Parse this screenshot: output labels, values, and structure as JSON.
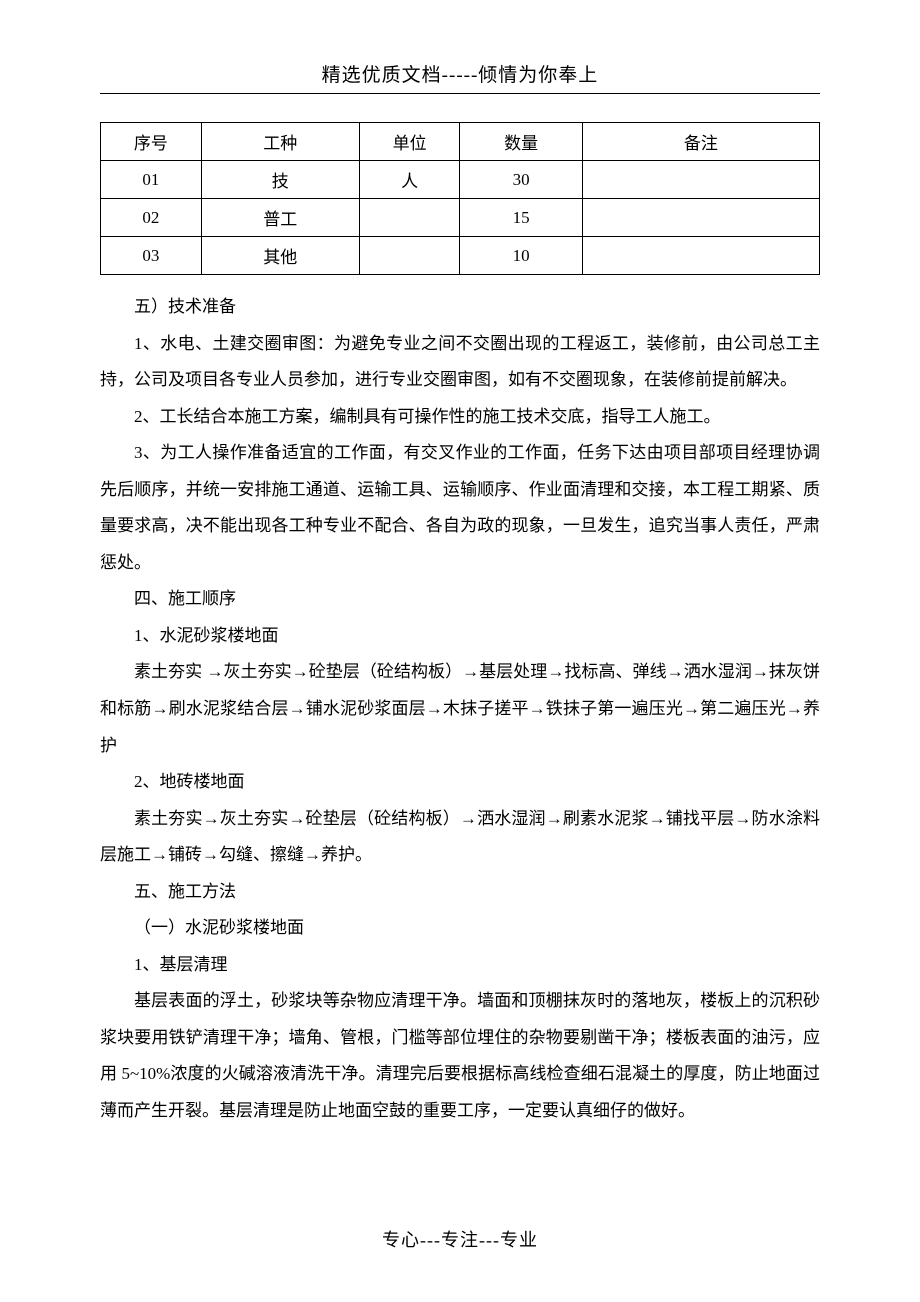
{
  "header": "精选优质文档-----倾情为你奉上",
  "table": {
    "columns": [
      "序号",
      "工种",
      "单位",
      "数量",
      "备注"
    ],
    "rows": [
      [
        "01",
        "技",
        "人",
        "30",
        ""
      ],
      [
        "02",
        "普工",
        "",
        "15",
        ""
      ],
      [
        "03",
        "其他",
        "",
        "10",
        ""
      ]
    ]
  },
  "paragraphs": [
    "五）技术准备",
    "1、水电、土建交圈审图：为避免专业之间不交圈出现的工程返工，装修前，由公司总工主持，公司及项目各专业人员参加，进行专业交圈审图，如有不交圈现象，在装修前提前解决。",
    "2、工长结合本施工方案，编制具有可操作性的施工技术交底，指导工人施工。",
    "3、为工人操作准备适宜的工作面，有交叉作业的工作面，任务下达由项目部项目经理协调先后顺序，并统一安排施工通道、运输工具、运输顺序、作业面清理和交接，本工程工期紧、质量要求高，决不能出现各工种专业不配合、各自为政的现象，一旦发生，追究当事人责任，严肃惩处。",
    "四、施工顺序",
    "1、水泥砂浆楼地面",
    "素土夯实 →灰土夯实→砼垫层（砼结构板）→基层处理→找标高、弹线→洒水湿润→抹灰饼和标筋→刷水泥浆结合层→铺水泥砂浆面层→木抹子搓平→铁抹子第一遍压光→第二遍压光→养护",
    "2、地砖楼地面",
    "素土夯实→灰土夯实→砼垫层（砼结构板）→洒水湿润→刷素水泥浆→铺找平层→防水涂料层施工→铺砖→勾缝、擦缝→养护。",
    "五、施工方法",
    "（一）水泥砂浆楼地面",
    "1、基层清理",
    "基层表面的浮土，砂浆块等杂物应清理干净。墙面和顶棚抹灰时的落地灰，楼板上的沉积砂浆块要用铁铲清理干净；墙角、管根，门槛等部位埋住的杂物要剔凿干净；楼板表面的油污，应用 5~10%浓度的火碱溶液清洗干净。清理完后要根据标高线检查细石混凝土的厚度，防止地面过薄而产生开裂。基层清理是防止地面空鼓的重要工序，一定要认真细仔的做好。"
  ],
  "footer": "专心---专注---专业"
}
